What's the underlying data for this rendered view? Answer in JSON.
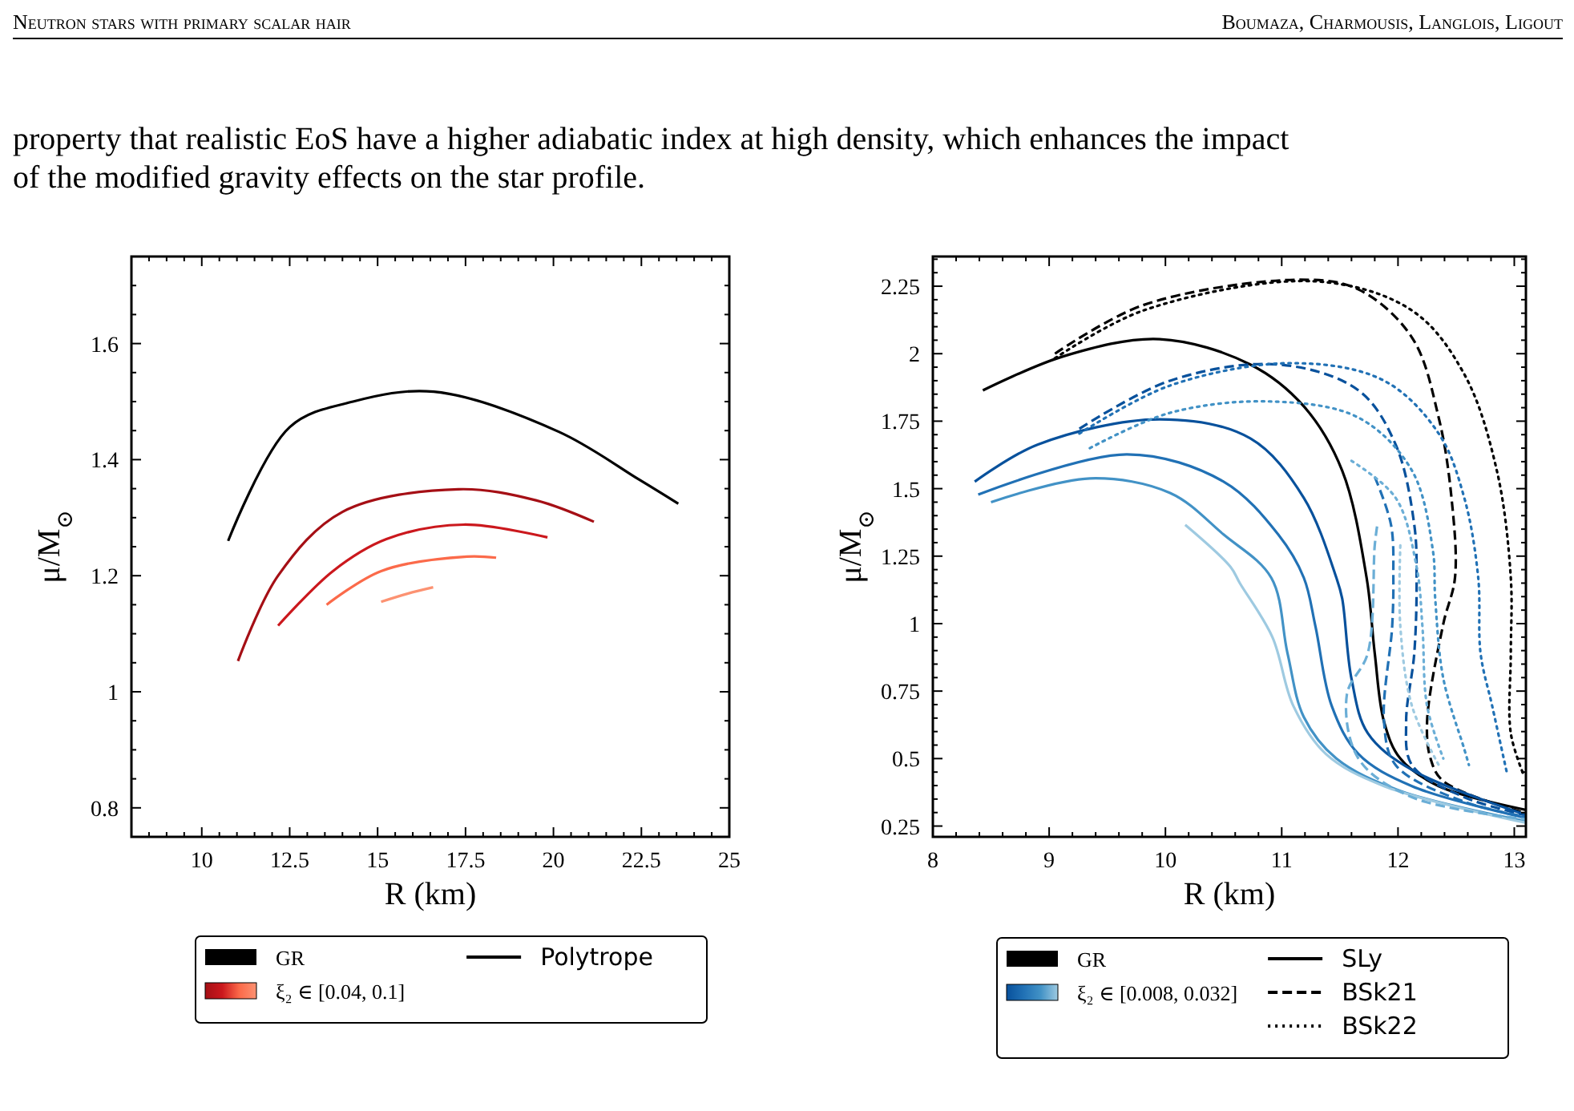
{
  "chart_data": [
    {
      "type": "line",
      "xlabel": "R (km)",
      "ylabel": "μ/M$_{⊙}$",
      "xlim": [
        8,
        25
      ],
      "ylim": [
        0.75,
        1.75
      ],
      "xticks": [
        {
          "value": 8,
          "label": null
        },
        {
          "value": 8.5,
          "label": null
        },
        {
          "value": 9,
          "label": null
        },
        {
          "value": 9.5,
          "label": null
        },
        10,
        {
          "value": 10.5,
          "label": null
        },
        {
          "value": 11,
          "label": null
        },
        {
          "value": 11.5,
          "label": null
        },
        {
          "value": 12,
          "label": null
        },
        12.5,
        {
          "value": 13,
          "label": null
        },
        {
          "value": 13.5,
          "label": null
        },
        {
          "value": 14,
          "label": null
        },
        {
          "value": 14.5,
          "label": null
        },
        15,
        {
          "value": 15.5,
          "label": null
        },
        {
          "value": 16,
          "label": null
        },
        {
          "value": 16.5,
          "label": null
        },
        {
          "value": 17,
          "label": null
        },
        17.5,
        {
          "value": 18,
          "label": null
        },
        {
          "value": 18.5,
          "label": null
        },
        {
          "value": 19,
          "label": null
        },
        {
          "value": 19.5,
          "label": null
        },
        20,
        {
          "value": 20.5,
          "label": null
        },
        {
          "value": 21,
          "label": null
        },
        {
          "value": 21.5,
          "label": null
        },
        {
          "value": 22,
          "label": null
        },
        22.5,
        {
          "value": 23,
          "label": null
        },
        {
          "value": 23.5,
          "label": null
        },
        {
          "value": 24,
          "label": null
        },
        {
          "value": 24.5,
          "label": null
        },
        25
      ],
      "yticks": [
        {
          "value": 0.75,
          "label": null
        },
        0.8,
        {
          "value": 0.85,
          "label": null
        },
        {
          "value": 0.9,
          "label": null
        },
        {
          "value": 0.95,
          "label": null
        },
        1,
        {
          "value": 1.05,
          "label": null
        },
        {
          "value": 1.1,
          "label": null
        },
        {
          "value": 1.15,
          "label": null
        },
        1.2,
        {
          "value": 1.25,
          "label": null
        },
        {
          "value": 1.3,
          "label": null
        },
        {
          "value": 1.35,
          "label": null
        },
        1.4,
        {
          "value": 1.45,
          "label": null
        },
        {
          "value": 1.5,
          "label": null
        },
        {
          "value": 1.55,
          "label": null
        },
        1.6,
        {
          "value": 1.65,
          "label": null
        },
        {
          "value": 1.7,
          "label": null
        },
        {
          "value": 1.75,
          "label": null
        }
      ],
      "legend": "bottom",
      "grid": false,
      "annotations": [
        "GR",
        "ξ₂ ∈ [0.04, 0.1]",
        "Neutron stars with primary scalar hair",
        "Boumaza, Charmousis, Langlois, Ligout",
        "property that realistic EoS have a higher adiabatic index at high density, which enhances the impact",
        "of the modified gravity effects on the star profile."
      ],
      "series": [
        {
          "name": "Polytrope",
          "color": "#000000",
          "line_style": "solid",
          "x": [
            10.75,
            12.5,
            14.3,
            16.6,
            20.15,
            22.45,
            23.55
          ],
          "values": [
            1.26,
            1.456,
            1.5,
            1.517,
            1.448,
            1.365,
            1.324
          ]
        },
        {
          "color": "#a50f15",
          "line_style": "solid",
          "x": [
            11.03,
            12.17,
            14.0,
            17.3,
            19.5,
            21.15
          ],
          "values": [
            1.053,
            1.2,
            1.31,
            1.349,
            1.33,
            1.293
          ]
        },
        {
          "color": "#cb181d",
          "line_style": "solid",
          "x": [
            12.17,
            13.73,
            15.25,
            17.45,
            19.83
          ],
          "values": [
            1.114,
            1.208,
            1.263,
            1.288,
            1.266
          ]
        },
        {
          "color": "#fb6a4a",
          "line_style": "solid",
          "x": [
            13.55,
            15.1,
            17.54,
            18.37
          ],
          "values": [
            1.15,
            1.208,
            1.233,
            1.231
          ]
        },
        {
          "color": "#fc9272",
          "line_style": "solid",
          "x": [
            15.1,
            15.85,
            16.58
          ],
          "values": [
            1.155,
            1.169,
            1.18
          ]
        }
      ]
    },
    {
      "type": "line",
      "xlabel": "R (km)",
      "ylabel": "μ/M$_{⊙}$",
      "xlim": [
        8,
        13.1
      ],
      "ylim": [
        0.21,
        2.36
      ],
      "xticks": [
        8,
        {
          "value": 8.2,
          "label": null
        },
        {
          "value": 8.4,
          "label": null
        },
        {
          "value": 8.6,
          "label": null
        },
        {
          "value": 8.8,
          "label": null
        },
        9,
        {
          "value": 9.2,
          "label": null
        },
        {
          "value": 9.4,
          "label": null
        },
        {
          "value": 9.6,
          "label": null
        },
        {
          "value": 9.8,
          "label": null
        },
        10,
        {
          "value": 10.2,
          "label": null
        },
        {
          "value": 10.4,
          "label": null
        },
        {
          "value": 10.6,
          "label": null
        },
        {
          "value": 10.8,
          "label": null
        },
        11,
        {
          "value": 11.2,
          "label": null
        },
        {
          "value": 11.4,
          "label": null
        },
        {
          "value": 11.6,
          "label": null
        },
        {
          "value": 11.8,
          "label": null
        },
        12,
        {
          "value": 12.2,
          "label": null
        },
        {
          "value": 12.4,
          "label": null
        },
        {
          "value": 12.6,
          "label": null
        },
        {
          "value": 12.8,
          "label": null
        },
        13
      ],
      "yticks": [
        0.25,
        {
          "value": 0.3,
          "label": null
        },
        {
          "value": 0.35,
          "label": null
        },
        {
          "value": 0.4,
          "label": null
        },
        {
          "value": 0.45,
          "label": null
        },
        0.5,
        {
          "value": 0.55,
          "label": null
        },
        {
          "value": 0.6,
          "label": null
        },
        {
          "value": 0.65,
          "label": null
        },
        {
          "value": 0.7,
          "label": null
        },
        0.75,
        {
          "value": 0.8,
          "label": null
        },
        {
          "value": 0.85,
          "label": null
        },
        {
          "value": 0.9,
          "label": null
        },
        {
          "value": 0.95,
          "label": null
        },
        1,
        {
          "value": 1.05,
          "label": null
        },
        {
          "value": 1.1,
          "label": null
        },
        {
          "value": 1.15,
          "label": null
        },
        {
          "value": 1.2,
          "label": null
        },
        1.25,
        {
          "value": 1.3,
          "label": null
        },
        {
          "value": 1.35,
          "label": null
        },
        {
          "value": 1.4,
          "label": null
        },
        {
          "value": 1.45,
          "label": null
        },
        1.5,
        {
          "value": 1.55,
          "label": null
        },
        {
          "value": 1.6,
          "label": null
        },
        {
          "value": 1.65,
          "label": null
        },
        {
          "value": 1.7,
          "label": null
        },
        1.75,
        {
          "value": 1.8,
          "label": null
        },
        {
          "value": 1.85,
          "label": null
        },
        {
          "value": 1.9,
          "label": null
        },
        {
          "value": 1.95,
          "label": null
        },
        2,
        {
          "value": 2.05,
          "label": null
        },
        {
          "value": 2.1,
          "label": null
        },
        {
          "value": 2.15,
          "label": null
        },
        {
          "value": 2.2,
          "label": null
        },
        2.25,
        {
          "value": 2.3,
          "label": null
        },
        {
          "value": 2.35,
          "label": null
        }
      ],
      "legend": "bottom",
      "grid": false,
      "annotations": [
        "GR",
        "ξ₂ ∈ [0.008, 0.032]"
      ],
      "series": [
        {
          "name": "SLy",
          "color": "#000000",
          "line_style": "solid",
          "x": [
            8.43,
            9.12,
            9.95,
            10.73,
            11.19,
            11.52,
            11.73,
            11.8,
            11.88,
            12.02,
            12.35,
            13.1
          ],
          "values": [
            1.864,
            1.99,
            2.054,
            1.96,
            1.805,
            1.567,
            1.17,
            0.89,
            0.636,
            0.5,
            0.398,
            0.31
          ]
        },
        {
          "name": "BSk21",
          "color": "#000000",
          "line_style": "dashed",
          "x": [
            9.05,
            9.81,
            11.15,
            11.66,
            12.12,
            12.35,
            12.46,
            12.49,
            12.39,
            12.25,
            12.28,
            12.39,
            13.1
          ],
          "values": [
            2.0,
            2.18,
            2.274,
            2.238,
            2.06,
            1.763,
            1.466,
            1.17,
            1.0,
            0.636,
            0.5,
            0.416,
            0.297
          ]
        },
        {
          "name": "BSk22",
          "color": "#000000",
          "line_style": "dotted",
          "x": [
            9.05,
            9.81,
            11.29,
            12.12,
            12.57,
            12.85,
            12.97,
            12.97,
            12.97,
            13.08
          ],
          "values": [
            1.983,
            2.16,
            2.268,
            2.16,
            1.924,
            1.567,
            1.17,
            0.89,
            0.594,
            0.44
          ]
        },
        {
          "color": "#08519c",
          "line_style": "solid",
          "x": [
            8.36,
            8.9,
            9.95,
            10.73,
            11.19,
            11.47,
            11.52,
            11.6,
            11.74,
            12.12,
            13.1
          ],
          "values": [
            1.526,
            1.663,
            1.757,
            1.686,
            1.466,
            1.17,
            1.093,
            0.796,
            0.594,
            0.458,
            0.292
          ]
        },
        {
          "color": "#2171b5",
          "line_style": "solid",
          "x": [
            8.39,
            9.67,
            10.5,
            10.97,
            11.19,
            11.29,
            11.43,
            11.66,
            12.12,
            13.1
          ],
          "values": [
            1.478,
            1.627,
            1.526,
            1.33,
            1.17,
            0.99,
            0.695,
            0.517,
            0.398,
            0.28
          ]
        },
        {
          "color": "#4292c6",
          "line_style": "solid",
          "x": [
            8.5,
            9.35,
            10.04,
            10.5,
            10.91,
            11.05,
            11.19,
            11.47,
            12.02,
            13.1
          ],
          "values": [
            1.45,
            1.538,
            1.484,
            1.33,
            1.17,
            0.89,
            0.654,
            0.5,
            0.38,
            0.268
          ]
        },
        {
          "color": "#9ecae1",
          "line_style": "solid",
          "x": [
            10.17,
            10.56,
            10.64,
            10.92,
            11.1,
            11.38,
            11.88,
            13.1
          ],
          "values": [
            1.366,
            1.21,
            1.15,
            0.95,
            0.695,
            0.517,
            0.398,
            0.262
          ]
        },
        {
          "color": "#08519c",
          "line_style": "dashed",
          "x": [
            9.26,
            10.04,
            10.97,
            11.66,
            11.98,
            12.14,
            12.16,
            12.14,
            12.07,
            12.12,
            12.57,
            13.1
          ],
          "values": [
            1.722,
            1.9,
            1.96,
            1.864,
            1.663,
            1.366,
            1.17,
            0.89,
            0.636,
            0.476,
            0.357,
            0.29
          ]
        },
        {
          "color": "#2171b5",
          "line_style": "dashed",
          "x": [
            11.8,
            11.94,
            11.96,
            11.95,
            11.88,
            11.98,
            12.57,
            13.1
          ],
          "values": [
            1.544,
            1.366,
            1.17,
            0.99,
            0.636,
            0.476,
            0.34,
            0.285
          ]
        },
        {
          "color": "#6baed6",
          "line_style": "dashed",
          "x": [
            11.82,
            11.8,
            11.74,
            11.56,
            11.66,
            12.12,
            13.1
          ],
          "values": [
            1.36,
            1.29,
            0.89,
            0.736,
            0.5,
            0.357,
            0.275
          ]
        },
        {
          "color": "#2171b5",
          "line_style": "dotted",
          "x": [
            9.26,
            10.04,
            11.1,
            11.88,
            12.35,
            12.57,
            12.69,
            12.71,
            12.81,
            12.94
          ],
          "values": [
            1.704,
            1.882,
            1.965,
            1.9,
            1.704,
            1.466,
            1.17,
            0.89,
            0.695,
            0.44
          ]
        },
        {
          "color": "#4292c6",
          "line_style": "dotted",
          "x": [
            9.35,
            10.04,
            10.91,
            11.66,
            12.12,
            12.3,
            12.32,
            12.39,
            12.57,
            12.61
          ],
          "values": [
            1.65,
            1.781,
            1.823,
            1.763,
            1.567,
            1.271,
            1.093,
            0.796,
            0.535,
            0.476
          ]
        },
        {
          "color": "#6baed6",
          "line_style": "dotted",
          "x": [
            11.6,
            11.98,
            12.16,
            12.21,
            12.25,
            12.39
          ],
          "values": [
            1.603,
            1.466,
            1.21,
            0.99,
            0.695,
            0.5
          ]
        },
        {
          "color": "#9ecae1",
          "line_style": "dotted",
          "x": [
            12.02,
            12.02,
            12.12,
            12.35
          ],
          "values": [
            1.29,
            0.99,
            0.695,
            0.476
          ]
        }
      ]
    }
  ]
}
